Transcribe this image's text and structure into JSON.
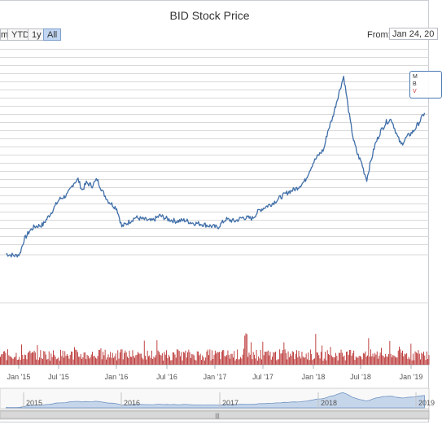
{
  "title": "BID Stock Price",
  "range_selector": {
    "buttons": [
      {
        "label": "m",
        "active": false
      },
      {
        "label": "YTD",
        "active": false
      },
      {
        "label": "1y",
        "active": false
      },
      {
        "label": "All",
        "active": true
      }
    ],
    "from_label": "From:",
    "from_value": "Jan 24, 20"
  },
  "tooltip": {
    "line1": "M",
    "line2": "B",
    "line3": "V"
  },
  "colors": {
    "price_line": "#3f6ea8",
    "volume": "#b82d2d",
    "navigator_fill": "#c6d6ea",
    "navigator_line": "#6f93c3",
    "grid": "#d9d9d9",
    "button_active": "#c0d6f2"
  },
  "chart_data": {
    "type": "line",
    "title": "BID Stock Price",
    "x_axis": {
      "type": "datetime",
      "tick_labels": [
        "Jan '15",
        "Jul '15",
        "Jan '16",
        "Jul '16",
        "Jan '17",
        "Jul '17",
        "Jan '18",
        "Jul '18",
        "Jan '19"
      ],
      "range": [
        "2014-11",
        "2019-04"
      ]
    },
    "series": [
      {
        "type": "line",
        "points": [
          [
            "2014-11-15",
            12.0
          ],
          [
            "2014-12-01",
            11.9
          ],
          [
            "2014-12-20",
            11.8
          ],
          [
            "2015-01-05",
            12.0
          ],
          [
            "2015-01-20",
            13.5
          ],
          [
            "2015-02-10",
            14.5
          ],
          [
            "2015-03-01",
            15.0
          ],
          [
            "2015-04-01",
            15.2
          ],
          [
            "2015-05-01",
            16.5
          ],
          [
            "2015-06-01",
            18.0
          ],
          [
            "2015-07-01",
            18.5
          ],
          [
            "2015-07-25",
            19.8
          ],
          [
            "2015-08-10",
            20.2
          ],
          [
            "2015-08-25",
            19.0
          ],
          [
            "2015-09-10",
            19.8
          ],
          [
            "2015-10-01",
            19.5
          ],
          [
            "2015-10-20",
            20.2
          ],
          [
            "2015-11-10",
            18.8
          ],
          [
            "2015-12-01",
            17.8
          ],
          [
            "2016-01-01",
            17.0
          ],
          [
            "2016-01-20",
            15.0
          ],
          [
            "2016-02-15",
            15.5
          ],
          [
            "2016-03-10",
            16.0
          ],
          [
            "2016-04-10",
            15.8
          ],
          [
            "2016-05-10",
            15.6
          ],
          [
            "2016-06-10",
            16.2
          ],
          [
            "2016-07-10",
            15.8
          ],
          [
            "2016-08-10",
            15.6
          ],
          [
            "2016-09-10",
            15.7
          ],
          [
            "2016-10-10",
            15.4
          ],
          [
            "2016-11-10",
            15.3
          ],
          [
            "2016-12-10",
            15.1
          ],
          [
            "2017-01-10",
            14.9
          ],
          [
            "2017-02-10",
            15.8
          ],
          [
            "2017-03-15",
            15.6
          ],
          [
            "2017-04-15",
            16.0
          ],
          [
            "2017-05-20",
            15.9
          ],
          [
            "2017-06-15",
            16.8
          ],
          [
            "2017-07-10",
            17.2
          ],
          [
            "2017-08-05",
            17.6
          ],
          [
            "2017-09-01",
            18.2
          ],
          [
            "2017-10-01",
            18.8
          ],
          [
            "2017-11-01",
            19.2
          ],
          [
            "2017-12-01",
            20.0
          ],
          [
            "2018-01-01",
            22.0
          ],
          [
            "2018-01-20",
            22.8
          ],
          [
            "2018-02-10",
            23.5
          ],
          [
            "2018-02-25",
            25.5
          ],
          [
            "2018-03-15",
            27.0
          ],
          [
            "2018-04-01",
            29.0
          ],
          [
            "2018-04-15",
            30.5
          ],
          [
            "2018-04-25",
            31.5
          ],
          [
            "2018-05-10",
            28.5
          ],
          [
            "2018-05-20",
            26.5
          ],
          [
            "2018-06-01",
            24.5
          ],
          [
            "2018-06-15",
            23.0
          ],
          [
            "2018-07-01",
            22.0
          ],
          [
            "2018-07-10",
            21.0
          ],
          [
            "2018-07-20",
            20.2
          ],
          [
            "2018-08-01",
            21.8
          ],
          [
            "2018-08-20",
            24.0
          ],
          [
            "2018-09-10",
            25.5
          ],
          [
            "2018-10-01",
            26.5
          ],
          [
            "2018-10-20",
            26.8
          ],
          [
            "2018-11-10",
            25.0
          ],
          [
            "2018-11-25",
            24.0
          ],
          [
            "2018-12-15",
            24.8
          ],
          [
            "2019-01-10",
            25.5
          ],
          [
            "2019-02-01",
            26.5
          ],
          [
            "2019-02-20",
            27.5
          ]
        ]
      },
      {
        "type": "column",
        "name": "volume",
        "description": "dense daily volume bars along the bottom panel"
      }
    ]
  }
}
